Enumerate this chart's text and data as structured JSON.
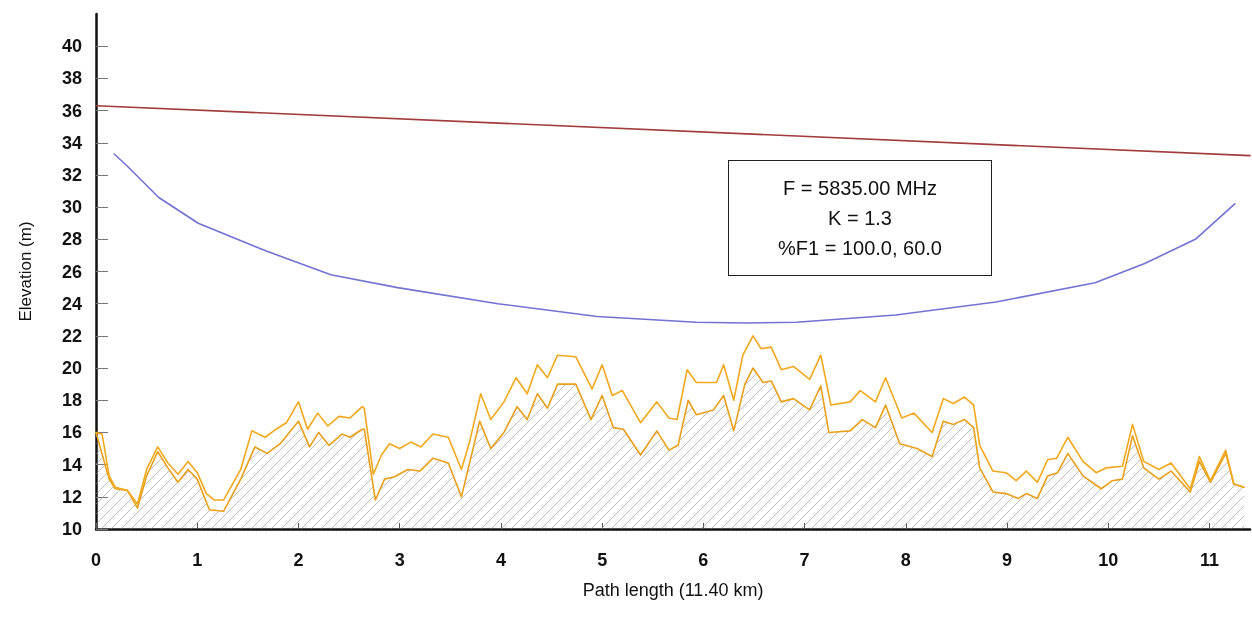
{
  "chart_data": {
    "type": "line",
    "xlabel": "Path length (11.40 km)",
    "ylabel": "Elevation (m)",
    "xlim": [
      0,
      11.4
    ],
    "xticks": [
      0,
      1,
      2,
      3,
      4,
      5,
      6,
      7,
      8,
      9,
      10,
      11
    ],
    "ylim": [
      10,
      42
    ],
    "yticks": [
      10,
      12,
      14,
      16,
      18,
      20,
      22,
      24,
      26,
      28,
      30,
      32,
      34,
      36,
      38,
      40
    ],
    "grid": false,
    "marker": "none",
    "line_style": "solid",
    "annotations": [
      "F = 5835.00 MHz",
      "K = 1.3",
      "%F1 = 100.0, 60.0"
    ],
    "series": [
      {
        "color": "#a23c3c",
        "x": [
          0,
          11.4
        ],
        "values": [
          36.3,
          33.2
        ]
      },
      {
        "color": "#7272d2",
        "x": [
          0.18,
          0.3,
          0.62,
          1.01,
          1.67,
          2.32,
          2.98,
          3.97,
          4.95,
          5.93,
          6.43,
          6.92,
          7.9,
          8.89,
          9.87,
          10.36,
          10.86,
          11.25
        ],
        "values": [
          33.3,
          32.6,
          30.6,
          29.0,
          27.3,
          25.8,
          25.0,
          24.0,
          23.2,
          22.85,
          22.8,
          22.85,
          23.3,
          24.1,
          25.3,
          26.5,
          28.0,
          30.2
        ]
      },
      {
        "color": "#f2a81d",
        "x": [
          0,
          0.06,
          0.13,
          0.19,
          0.31,
          0.41,
          0.5,
          0.61,
          0.71,
          0.81,
          0.91,
          1.0,
          1.09,
          1.17,
          1.26,
          1.43,
          1.54,
          1.67,
          1.78,
          1.88,
          2.0,
          2.09,
          2.19,
          2.29,
          2.4,
          2.51,
          2.63,
          2.65,
          2.74,
          2.82,
          2.9,
          3.0,
          3.11,
          3.21,
          3.33,
          3.48,
          3.61,
          3.69,
          3.8,
          3.9,
          4.03,
          4.15,
          4.26,
          4.36,
          4.46,
          4.56,
          4.74,
          4.9,
          5.0,
          5.1,
          5.2,
          5.38,
          5.54,
          5.66,
          5.74,
          5.84,
          5.93,
          6.13,
          6.2,
          6.3,
          6.39,
          6.49,
          6.57,
          6.67,
          6.77,
          6.89,
          7.05,
          7.16,
          7.26,
          7.45,
          7.55,
          7.7,
          7.8,
          7.96,
          8.08,
          8.26,
          8.37,
          8.47,
          8.58,
          8.67,
          8.73,
          8.86,
          8.99,
          9.09,
          9.19,
          9.3,
          9.4,
          9.49,
          9.6,
          9.75,
          9.88,
          9.98,
          10.14,
          10.24,
          10.35,
          10.5,
          10.62,
          10.81,
          10.9,
          11.01,
          11.16,
          11.24,
          11.34
        ],
        "values": [
          16.0,
          15.9,
          13.3,
          12.6,
          12.4,
          11.55,
          13.7,
          15.1,
          14.1,
          13.4,
          14.2,
          13.5,
          12.2,
          11.8,
          11.8,
          13.7,
          16.1,
          15.7,
          16.2,
          16.6,
          17.9,
          16.2,
          17.2,
          16.4,
          17.0,
          16.9,
          17.6,
          17.5,
          13.4,
          14.6,
          15.3,
          15.0,
          15.4,
          15.1,
          15.9,
          15.7,
          13.7,
          15.4,
          18.4,
          16.8,
          17.9,
          19.4,
          18.4,
          20.2,
          19.4,
          20.8,
          20.7,
          18.7,
          20.2,
          18.3,
          18.6,
          16.6,
          17.9,
          16.9,
          16.8,
          19.9,
          19.1,
          19.1,
          20.2,
          18.0,
          20.8,
          22.0,
          21.2,
          21.3,
          19.9,
          20.1,
          19.3,
          20.8,
          17.7,
          17.9,
          18.6,
          17.9,
          19.4,
          16.9,
          17.2,
          16.0,
          18.1,
          17.8,
          18.2,
          17.7,
          15.2,
          13.6,
          13.5,
          13.0,
          13.6,
          12.9,
          14.3,
          14.4,
          15.7,
          14.2,
          13.5,
          13.8,
          13.9,
          16.5,
          14.2,
          13.7,
          14.1,
          12.5,
          14.5,
          13.0,
          14.9,
          12.8,
          12.6
        ]
      },
      {
        "type": "area",
        "color": "#e89f1a",
        "x": [
          0,
          0.13,
          0.19,
          0.31,
          0.41,
          0.5,
          0.61,
          0.71,
          0.81,
          0.91,
          1.0,
          1.12,
          1.26,
          1.43,
          1.57,
          1.69,
          1.82,
          1.91,
          2.0,
          2.11,
          2.2,
          2.3,
          2.43,
          2.51,
          2.63,
          2.65,
          2.76,
          2.85,
          2.95,
          3.08,
          3.2,
          3.33,
          3.48,
          3.61,
          3.79,
          3.9,
          4.03,
          4.16,
          4.26,
          4.36,
          4.46,
          4.56,
          4.74,
          4.89,
          5.0,
          5.11,
          5.21,
          5.38,
          5.54,
          5.66,
          5.75,
          5.85,
          5.93,
          6.1,
          6.2,
          6.3,
          6.41,
          6.49,
          6.59,
          6.67,
          6.77,
          6.89,
          7.05,
          7.16,
          7.24,
          7.45,
          7.57,
          7.7,
          7.8,
          7.94,
          8.11,
          8.26,
          8.37,
          8.47,
          8.58,
          8.67,
          8.73,
          8.86,
          8.99,
          9.11,
          9.19,
          9.3,
          9.4,
          9.5,
          9.6,
          9.75,
          9.93,
          10.04,
          10.14,
          10.24,
          10.35,
          10.5,
          10.62,
          10.81,
          10.9,
          11.01,
          11.16,
          11.24,
          11.34
        ],
        "values": [
          16.0,
          13.1,
          12.5,
          12.4,
          11.3,
          13.3,
          14.8,
          13.8,
          12.9,
          13.7,
          13.1,
          11.2,
          11.1,
          13.1,
          15.1,
          14.7,
          15.3,
          16.0,
          16.7,
          15.1,
          16.0,
          15.2,
          15.9,
          15.7,
          16.2,
          16.2,
          11.8,
          13.1,
          13.25,
          13.7,
          13.6,
          14.4,
          14.1,
          12.0,
          16.7,
          15.0,
          16.0,
          17.6,
          16.8,
          18.4,
          17.5,
          19.0,
          19.0,
          16.8,
          18.3,
          16.3,
          16.2,
          14.6,
          16.1,
          14.9,
          15.2,
          18.0,
          17.1,
          17.4,
          18.3,
          16.1,
          19.0,
          20.0,
          19.1,
          19.2,
          17.9,
          18.1,
          17.4,
          18.9,
          16.0,
          16.1,
          16.8,
          16.3,
          17.7,
          15.3,
          15.0,
          14.5,
          16.7,
          16.5,
          16.8,
          16.3,
          13.8,
          12.3,
          12.2,
          11.9,
          12.2,
          11.9,
          13.3,
          13.5,
          14.7,
          13.3,
          12.5,
          13.0,
          13.1,
          15.8,
          13.8,
          13.1,
          13.6,
          12.3,
          14.2,
          12.9,
          14.7,
          12.8,
          12.6
        ]
      }
    ]
  }
}
